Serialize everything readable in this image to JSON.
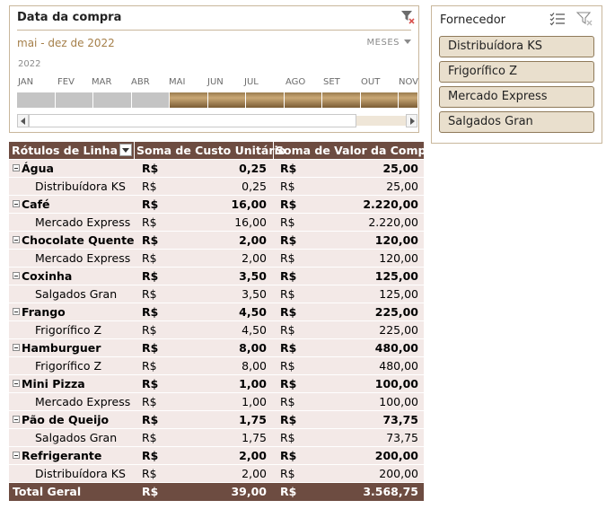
{
  "timeline": {
    "title": "Data da compra",
    "range_label": "mai - dez de 2022",
    "level_label": "MESES",
    "year": "2022",
    "months": [
      {
        "label": "JAN",
        "selected": false
      },
      {
        "label": "FEV",
        "selected": false
      },
      {
        "label": "MAR",
        "selected": false
      },
      {
        "label": "ABR",
        "selected": false
      },
      {
        "label": "MAI",
        "selected": true
      },
      {
        "label": "JUN",
        "selected": true
      },
      {
        "label": "JUL",
        "selected": true
      },
      {
        "label": "AGO",
        "selected": true
      },
      {
        "label": "SET",
        "selected": true
      },
      {
        "label": "OUT",
        "selected": true
      },
      {
        "label": "NOV",
        "selected": true
      }
    ]
  },
  "slicer": {
    "title": "Fornecedor",
    "items": [
      "Distribuídora KS",
      "Frigorífico Z",
      "Mercado Express",
      "Salgados Gran"
    ]
  },
  "pivot": {
    "headers": {
      "row_labels": "Rótulos de Linha",
      "col1": "Soma de Custo Unitário",
      "col2": "Soma de Valor da Compra"
    },
    "currency": "R$",
    "rows": [
      {
        "label": "Água",
        "cost": "0,25",
        "value": "25,00",
        "sub": {
          "label": "Distribuídora KS",
          "cost": "0,25",
          "value": "25,00"
        }
      },
      {
        "label": "Café",
        "cost": "16,00",
        "value": "2.220,00",
        "sub": {
          "label": "Mercado Express",
          "cost": "16,00",
          "value": "2.220,00"
        }
      },
      {
        "label": "Chocolate Quente",
        "cost": "2,00",
        "value": "120,00",
        "sub": {
          "label": "Mercado Express",
          "cost": "2,00",
          "value": "120,00"
        }
      },
      {
        "label": "Coxinha",
        "cost": "3,50",
        "value": "125,00",
        "sub": {
          "label": "Salgados Gran",
          "cost": "3,50",
          "value": "125,00"
        }
      },
      {
        "label": "Frango",
        "cost": "4,50",
        "value": "225,00",
        "sub": {
          "label": "Frigorífico Z",
          "cost": "4,50",
          "value": "225,00"
        }
      },
      {
        "label": "Hamburguer",
        "cost": "8,00",
        "value": "480,00",
        "sub": {
          "label": "Frigorífico Z",
          "cost": "8,00",
          "value": "480,00"
        }
      },
      {
        "label": "Mini Pizza",
        "cost": "1,00",
        "value": "100,00",
        "sub": {
          "label": "Mercado Express",
          "cost": "1,00",
          "value": "100,00"
        }
      },
      {
        "label": "Pão de Queijo",
        "cost": "1,75",
        "value": "73,75",
        "sub": {
          "label": "Salgados Gran",
          "cost": "1,75",
          "value": "73,75"
        }
      },
      {
        "label": "Refrigerante",
        "cost": "2,00",
        "value": "200,00",
        "sub": {
          "label": "Distribuídora KS",
          "cost": "2,00",
          "value": "200,00"
        }
      }
    ],
    "total": {
      "label": "Total Geral",
      "cost": "39,00",
      "value": "3.568,75"
    }
  },
  "colors": {
    "header_bg": "#6d4c41",
    "row_bg": "#f3e9e7",
    "slicer_item_bg": "#e9dfcd",
    "timeline_selected": "#a8875a",
    "timeline_unselected": "#c4c4c4",
    "range_text": "#a57f49"
  }
}
